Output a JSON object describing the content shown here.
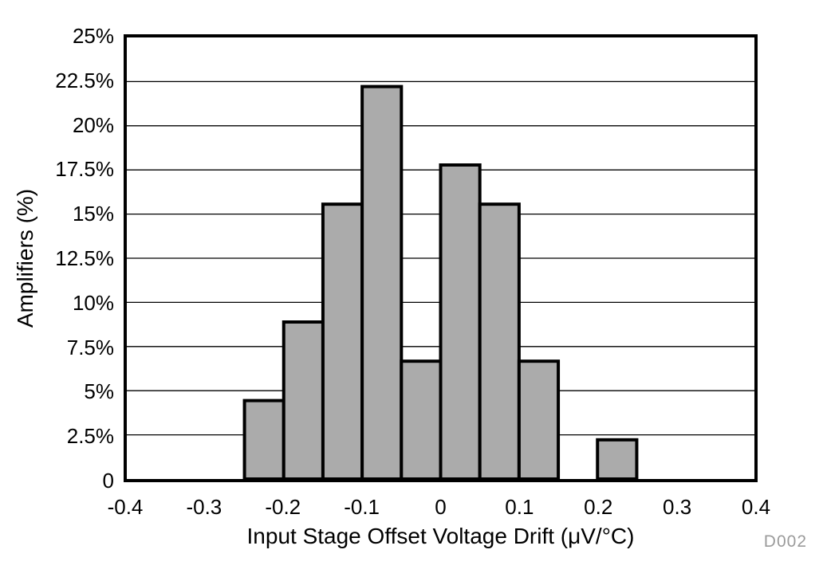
{
  "chart_data": {
    "type": "bar",
    "subtype": "histogram",
    "title": "",
    "xlabel": "Input Stage Offset Voltage Drift (μV/°C)",
    "ylabel": "Amplifiers (%)",
    "xlim": [
      -0.4,
      0.4
    ],
    "ylim": [
      0,
      25
    ],
    "grid": "horizontal",
    "legend": "none",
    "x_ticks": [
      -0.4,
      -0.3,
      -0.2,
      -0.1,
      0,
      0.1,
      0.2,
      0.3,
      0.4
    ],
    "x_tick_labels": [
      "-0.4",
      "-0.3",
      "-0.2",
      "-0.1",
      "0",
      "0.1",
      "0.2",
      "0.3",
      "0.4"
    ],
    "y_ticks": [
      0,
      2.5,
      5,
      7.5,
      10,
      12.5,
      15,
      17.5,
      20,
      22.5,
      25
    ],
    "y_tick_labels": [
      "0",
      "2.5%",
      "5%",
      "7.5%",
      "10%",
      "12.5%",
      "15%",
      "17.5%",
      "20%",
      "22.5%",
      "25%"
    ],
    "bin_width": 0.05,
    "bars": [
      {
        "x0": -0.25,
        "x1": -0.2,
        "value": 4.44
      },
      {
        "x0": -0.2,
        "x1": -0.15,
        "value": 8.89
      },
      {
        "x0": -0.15,
        "x1": -0.1,
        "value": 15.56
      },
      {
        "x0": -0.1,
        "x1": -0.05,
        "value": 22.22
      },
      {
        "x0": -0.05,
        "x1": 0.0,
        "value": 6.67
      },
      {
        "x0": 0.0,
        "x1": 0.05,
        "value": 17.78
      },
      {
        "x0": 0.05,
        "x1": 0.1,
        "value": 15.56
      },
      {
        "x0": 0.1,
        "x1": 0.15,
        "value": 6.67
      },
      {
        "x0": 0.15,
        "x1": 0.2,
        "value": 0
      },
      {
        "x0": 0.2,
        "x1": 0.25,
        "value": 2.22
      }
    ],
    "colors": {
      "bar_fill": "#ababab",
      "bar_edge": "#000000",
      "gridline": "#000000",
      "frame": "#000000",
      "watermark_text": "#9b9b9b"
    },
    "watermark": "D002"
  }
}
